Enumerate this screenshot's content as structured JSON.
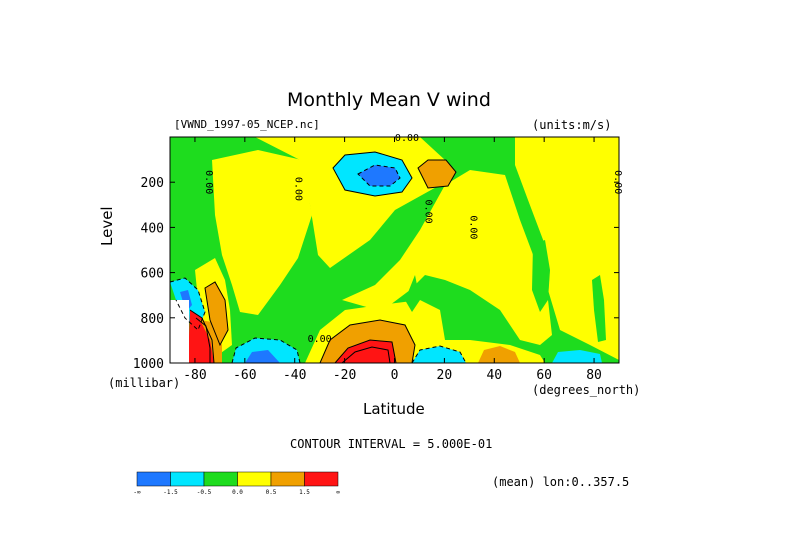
{
  "header": {
    "title": "Monthly Mean V wind",
    "dataset": "[VWND_1997-05_NCEP.nc]",
    "units": "(units:m/s)"
  },
  "footer": {
    "contour_interval": "CONTOUR INTERVAL = 5.000E-01",
    "mean_info": "(mean) lon:0..357.5"
  },
  "chart_data": {
    "type": "heatmap",
    "title": "Monthly Mean V wind",
    "xlabel": "Latitude",
    "ylabel": "Level",
    "x_unit": "(degrees_north)",
    "y_unit": "(millibar)",
    "xlim": [
      -90,
      90
    ],
    "ylim": [
      1000,
      0
    ],
    "x_ticks": [
      -80,
      -60,
      -40,
      -20,
      0,
      20,
      40,
      60,
      80
    ],
    "y_ticks": [
      200,
      400,
      600,
      800,
      1000
    ],
    "contour_interval": 0.5,
    "contour_labels": [
      {
        "lat": 5,
        "level": 0,
        "text": "0.00"
      },
      {
        "lat": -74,
        "level": 200,
        "text": "0.00"
      },
      {
        "lat": -38,
        "level": 230,
        "text": "0.00"
      },
      {
        "lat": 14,
        "level": 330,
        "text": "0.00"
      },
      {
        "lat": 32,
        "level": 400,
        "text": "0.00"
      },
      {
        "lat": -30,
        "level": 890,
        "text": "0.00"
      },
      {
        "lat": 90,
        "level": 200,
        "text": "0.00"
      }
    ],
    "levels": [
      -1.5,
      -0.5,
      0.0,
      0.5,
      1.5
    ],
    "colorbar": {
      "colors": [
        "#1e78ff",
        "#00e6ff",
        "#1edc1e",
        "#ffff00",
        "#f0a000",
        "#ff1414"
      ],
      "labels": [
        "-∞",
        "-1.5",
        "-0.5",
        "0.0",
        "0.5",
        "1.5",
        "∞"
      ]
    },
    "regions": [
      {
        "level": "neg",
        "lat": [
          -27,
          -4
        ],
        "p": [
          120,
          210
        ]
      },
      {
        "level": "neg2",
        "lat": [
          -24,
          -8
        ],
        "p": [
          140,
          200
        ]
      },
      {
        "level": "pos",
        "lat": [
          8,
          26
        ],
        "p": [
          90,
          230
        ]
      },
      {
        "level": "pos2",
        "lat": [
          12,
          22
        ],
        "p": [
          130,
          190
        ]
      },
      {
        "level": "neg",
        "lat": [
          -66,
          -44
        ],
        "p": [
          880,
          1000
        ]
      },
      {
        "level": "neg2",
        "lat": [
          -62,
          -50
        ],
        "p": [
          940,
          1000
        ]
      },
      {
        "level": "pos",
        "lat": [
          -40,
          18
        ],
        "p": [
          800,
          1000
        ]
      },
      {
        "level": "pos2",
        "lat": [
          -28,
          2
        ],
        "p": [
          860,
          1000
        ]
      },
      {
        "level": "pos3",
        "lat": [
          -22,
          2
        ],
        "p": [
          920,
          1000
        ]
      },
      {
        "level": "neg",
        "lat": [
          4,
          24
        ],
        "p": [
          940,
          1000
        ]
      },
      {
        "level": "pos2",
        "lat": [
          30,
          48
        ],
        "p": [
          940,
          1000
        ]
      },
      {
        "level": "neg",
        "lat": [
          56,
          82
        ],
        "p": [
          950,
          1000
        ]
      },
      {
        "level": "pos",
        "lat": [
          -82,
          -66
        ],
        "p": [
          640,
          900
        ]
      },
      {
        "level": "pos2",
        "lat": [
          -78,
          -70
        ],
        "p": [
          680,
          870
        ]
      },
      {
        "level": "pos3",
        "lat": [
          -86,
          -80
        ],
        "p": [
          840,
          1000
        ]
      },
      {
        "level": "neg",
        "lat": [
          -90,
          -82
        ],
        "p": [
          620,
          760
        ]
      }
    ]
  }
}
